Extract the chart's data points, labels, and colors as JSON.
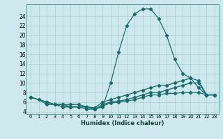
{
  "xlabel": "Humidex (Indice chaleur)",
  "background_color": "#cee9ed",
  "grid_color": "#aacccc",
  "line_color": "#1a6b6b",
  "xlim": [
    -0.5,
    23.5
  ],
  "ylim": [
    3.5,
    26.5
  ],
  "xticks": [
    0,
    1,
    2,
    3,
    4,
    5,
    6,
    7,
    8,
    9,
    10,
    11,
    12,
    13,
    14,
    15,
    16,
    17,
    18,
    19,
    20,
    21,
    22,
    23
  ],
  "yticks": [
    4,
    6,
    8,
    10,
    12,
    14,
    16,
    18,
    20,
    22,
    24
  ],
  "line1_x": [
    0,
    1,
    2,
    3,
    4,
    5,
    6,
    7,
    8,
    9,
    10,
    11,
    12,
    13,
    14,
    15,
    16,
    17,
    18,
    19,
    20,
    21,
    22,
    23
  ],
  "line1_y": [
    7.0,
    6.5,
    5.5,
    5.5,
    5.5,
    5.0,
    5.0,
    4.5,
    4.5,
    5.0,
    10.0,
    16.5,
    22.0,
    24.5,
    25.5,
    25.5,
    23.5,
    20.0,
    15.0,
    12.0,
    11.0,
    9.0,
    7.5,
    7.5
  ],
  "line2_x": [
    0,
    2,
    3,
    4,
    5,
    6,
    7,
    8,
    9,
    10,
    11,
    12,
    13,
    14,
    15,
    16,
    17,
    18,
    19,
    20,
    21,
    22,
    23
  ],
  "line2_y": [
    7.0,
    6.0,
    5.5,
    5.5,
    5.5,
    5.5,
    5.0,
    4.8,
    6.0,
    6.5,
    7.0,
    7.5,
    8.0,
    8.5,
    9.0,
    9.5,
    9.5,
    10.0,
    10.5,
    11.0,
    10.5,
    7.5,
    7.5
  ],
  "line3_x": [
    0,
    2,
    3,
    4,
    5,
    6,
    7,
    8,
    9,
    10,
    11,
    12,
    13,
    14,
    15,
    16,
    17,
    18,
    19,
    20,
    21,
    22,
    23
  ],
  "line3_y": [
    7.0,
    6.0,
    5.5,
    5.0,
    5.0,
    5.0,
    5.0,
    4.5,
    5.5,
    6.0,
    6.2,
    6.5,
    7.0,
    7.5,
    8.0,
    8.0,
    8.5,
    9.0,
    9.5,
    10.0,
    10.0,
    7.5,
    7.5
  ],
  "line4_x": [
    0,
    2,
    3,
    4,
    5,
    6,
    7,
    8,
    9,
    10,
    11,
    12,
    13,
    14,
    15,
    16,
    17,
    18,
    19,
    20,
    21,
    22,
    23
  ],
  "line4_y": [
    7.0,
    6.0,
    5.5,
    5.0,
    5.0,
    5.0,
    5.0,
    4.5,
    5.2,
    5.8,
    6.0,
    6.2,
    6.5,
    7.0,
    7.5,
    7.5,
    7.8,
    7.8,
    8.0,
    8.0,
    8.0,
    7.5,
    7.5
  ]
}
